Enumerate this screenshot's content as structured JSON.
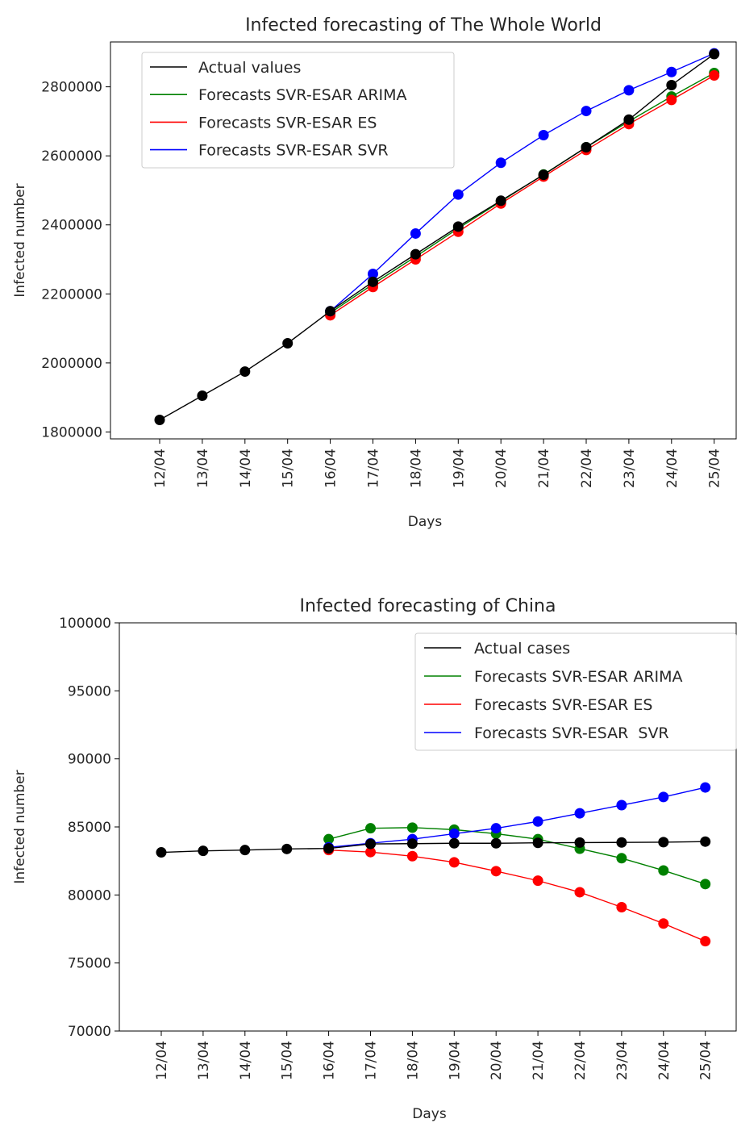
{
  "chart_data": [
    {
      "type": "line",
      "title": "Infected forecasting of The Whole World",
      "xlabel": "Days",
      "ylabel": "Infected number",
      "categories": [
        "12/04",
        "13/04",
        "14/04",
        "15/04",
        "16/04",
        "17/04",
        "18/04",
        "19/04",
        "20/04",
        "21/04",
        "22/04",
        "23/04",
        "24/04",
        "25/04"
      ],
      "ylim": [
        1780000,
        2930000
      ],
      "yticks": [
        1800000,
        2000000,
        2200000,
        2400000,
        2600000,
        2800000
      ],
      "legend_position": "top-left",
      "series": [
        {
          "name": "Actual values",
          "color": "#000000",
          "values": [
            1835000,
            1905000,
            1975000,
            2057000,
            2150000,
            2235000,
            2315000,
            2395000,
            2470000,
            2545000,
            2625000,
            2705000,
            2805000,
            2895000
          ]
        },
        {
          "name": "Forecasts SVR-ESAR ARIMA",
          "color": "#008000",
          "values": [
            null,
            null,
            null,
            null,
            2145000,
            2228000,
            2308000,
            2390000,
            2468000,
            2546000,
            2625000,
            2700000,
            2772000,
            2840000
          ]
        },
        {
          "name": "Forecasts SVR-ESAR ES",
          "color": "#ff0000",
          "values": [
            null,
            null,
            null,
            null,
            2138000,
            2220000,
            2300000,
            2380000,
            2462000,
            2540000,
            2617000,
            2692000,
            2762000,
            2833000
          ]
        },
        {
          "name": "Forecasts SVR-ESAR SVR",
          "color": "#0000ff",
          "values": [
            null,
            null,
            null,
            null,
            2150000,
            2258000,
            2375000,
            2488000,
            2580000,
            2660000,
            2730000,
            2790000,
            2843000,
            2897000
          ]
        }
      ]
    },
    {
      "type": "line",
      "title": "Infected forecasting of China",
      "xlabel": "Days",
      "ylabel": "Infected number",
      "categories": [
        "12/04",
        "13/04",
        "14/04",
        "15/04",
        "16/04",
        "17/04",
        "18/04",
        "19/04",
        "20/04",
        "21/04",
        "22/04",
        "23/04",
        "24/04",
        "25/04"
      ],
      "ylim": [
        70000,
        100000
      ],
      "yticks": [
        70000,
        75000,
        80000,
        85000,
        90000,
        95000,
        100000
      ],
      "legend_position": "top-right",
      "series": [
        {
          "name": "Actual cases",
          "color": "#000000",
          "values": [
            83130,
            83240,
            83300,
            83380,
            83420,
            83750,
            83770,
            83800,
            83800,
            83830,
            83850,
            83860,
            83880,
            83920
          ]
        },
        {
          "name": "Forecasts SVR-ESAR ARIMA",
          "color": "#008000",
          "values": [
            null,
            null,
            null,
            null,
            84100,
            84900,
            84950,
            84800,
            84500,
            84100,
            83400,
            82700,
            81800,
            80800
          ]
        },
        {
          "name": "Forecasts SVR-ESAR ES",
          "color": "#ff0000",
          "values": [
            null,
            null,
            null,
            null,
            83300,
            83150,
            82850,
            82400,
            81750,
            81050,
            80200,
            79100,
            77900,
            76600
          ]
        },
        {
          "name": "Forecasts SVR-ESAR  SVR",
          "color": "#0000ff",
          "values": [
            null,
            null,
            null,
            null,
            83500,
            83800,
            84100,
            84500,
            84900,
            85400,
            86000,
            86600,
            87200,
            87900
          ]
        }
      ]
    }
  ]
}
